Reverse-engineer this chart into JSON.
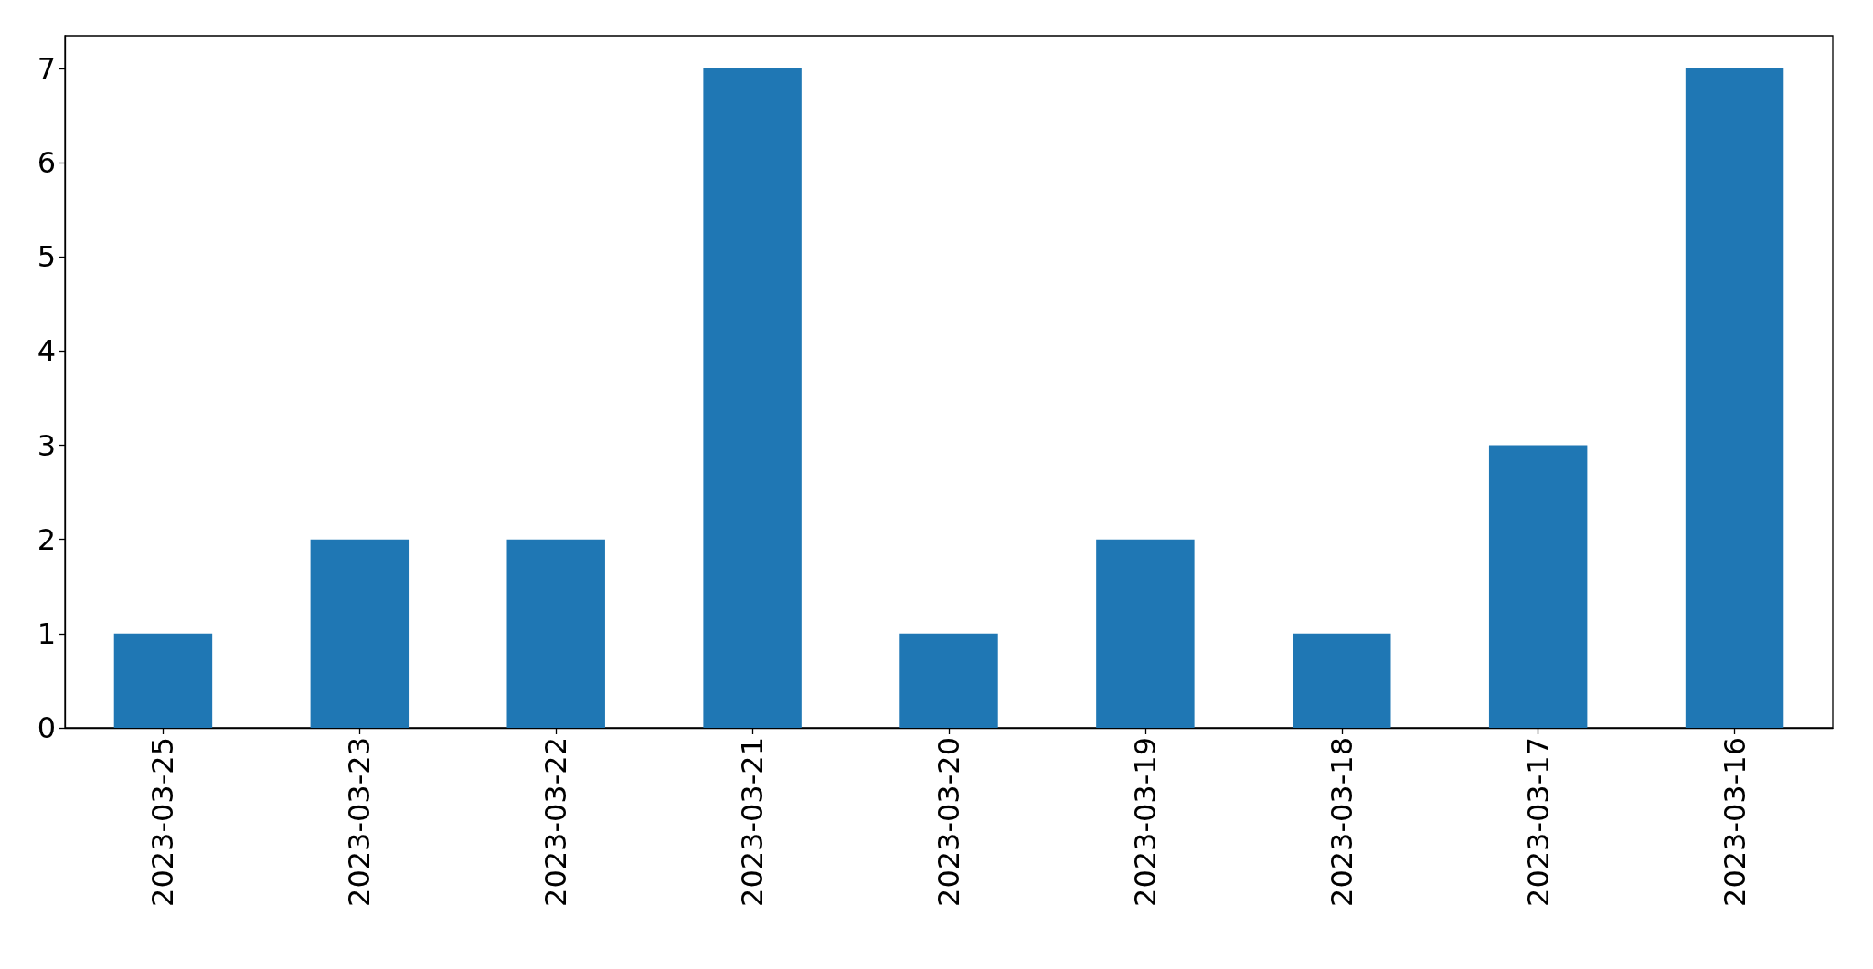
{
  "chart_data": {
    "type": "bar",
    "categories": [
      "2023-03-25",
      "2023-03-23",
      "2023-03-22",
      "2023-03-21",
      "2023-03-20",
      "2023-03-19",
      "2023-03-18",
      "2023-03-17",
      "2023-03-16"
    ],
    "values": [
      1,
      2,
      2,
      7,
      1,
      2,
      1,
      3,
      7
    ],
    "color": "#1f77b4",
    "ylim": [
      0,
      7.35
    ],
    "yticks": [
      0,
      1,
      2,
      3,
      4,
      5,
      6,
      7
    ],
    "grid": false
  }
}
